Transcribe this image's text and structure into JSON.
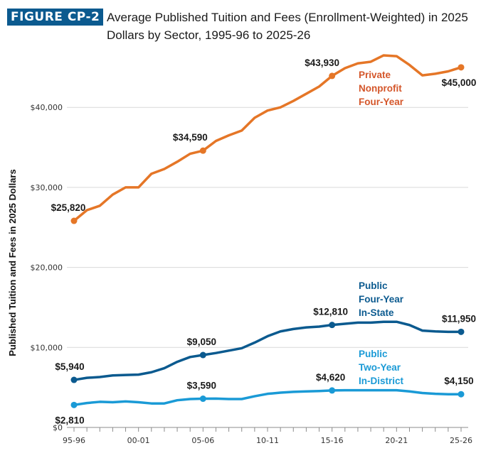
{
  "figure": {
    "badge": "FIGURE CP-2",
    "badge_color": "#0b5a8f"
  },
  "chart_data": {
    "type": "line",
    "title": "Average Published Tuition and Fees (Enrollment-Weighted) in 2025 Dollars by Sector, 1995-96 to 2025-26",
    "xlabel": "",
    "ylabel": "Published Tuition and Fees in 2025 Dollars",
    "ylim": [
      0,
      46500
    ],
    "yticks": [
      0,
      10000,
      20000,
      30000,
      40000
    ],
    "ytick_labels": [
      "$0",
      "$10,000",
      "$20,000",
      "$30,000",
      "$40,000"
    ],
    "grid": true,
    "x": [
      "95-96",
      "96-97",
      "97-98",
      "98-99",
      "99-00",
      "00-01",
      "01-02",
      "02-03",
      "03-04",
      "04-05",
      "05-06",
      "06-07",
      "07-08",
      "08-09",
      "09-10",
      "10-11",
      "11-12",
      "12-13",
      "13-14",
      "14-15",
      "15-16",
      "16-17",
      "17-18",
      "18-19",
      "19-20",
      "20-21",
      "21-22",
      "22-23",
      "23-24",
      "24-25",
      "25-26"
    ],
    "xtick_labels": [
      "95-96",
      "00-01",
      "05-06",
      "10-11",
      "15-16",
      "20-21",
      "25-26"
    ],
    "series": [
      {
        "name": "Private Nonprofit Four-Year",
        "label_lines": [
          "Private",
          "Nonprofit",
          "Four-Year"
        ],
        "color": "#e57627",
        "label_color": "#d4562a",
        "values": [
          25820,
          27150,
          27700,
          29100,
          30000,
          30000,
          31700,
          32300,
          33200,
          34200,
          34590,
          35800,
          36500,
          37100,
          38700,
          39600,
          40000,
          40800,
          41700,
          42600,
          43930,
          44900,
          45500,
          45700,
          46500,
          46400,
          45300,
          44000,
          44200,
          44500,
          45000
        ],
        "annotations": [
          {
            "index": 0,
            "text": "$25,820"
          },
          {
            "index": 10,
            "text": "$34,590"
          },
          {
            "index": 20,
            "text": "$43,930"
          },
          {
            "index": 30,
            "text": "$45,000"
          }
        ]
      },
      {
        "name": "Public Four-Year In-State",
        "label_lines": [
          "Public",
          "Four-Year",
          "In-State"
        ],
        "color": "#0b5a8f",
        "label_color": "#0b5a8f",
        "values": [
          5940,
          6200,
          6300,
          6500,
          6550,
          6600,
          6900,
          7400,
          8200,
          8800,
          9050,
          9300,
          9600,
          9900,
          10600,
          11400,
          12000,
          12300,
          12500,
          12600,
          12810,
          12950,
          13100,
          13100,
          13200,
          13200,
          12800,
          12100,
          12000,
          11950,
          11950
        ],
        "annotations": [
          {
            "index": 0,
            "text": "$5,940"
          },
          {
            "index": 10,
            "text": "$9,050"
          },
          {
            "index": 20,
            "text": "$12,810"
          },
          {
            "index": 30,
            "text": "$11,950"
          }
        ]
      },
      {
        "name": "Public Two-Year In-District",
        "label_lines": [
          "Public",
          "Two-Year",
          "In-District"
        ],
        "color": "#1a9ad6",
        "label_color": "#1a9ad6",
        "values": [
          2810,
          3050,
          3200,
          3150,
          3250,
          3150,
          3000,
          3000,
          3400,
          3550,
          3590,
          3600,
          3550,
          3550,
          3900,
          4200,
          4350,
          4450,
          4500,
          4550,
          4620,
          4650,
          4650,
          4650,
          4650,
          4650,
          4500,
          4300,
          4200,
          4150,
          4150
        ],
        "annotations": [
          {
            "index": 0,
            "text": "$2,810"
          },
          {
            "index": 10,
            "text": "$3,590"
          },
          {
            "index": 20,
            "text": "$4,620"
          },
          {
            "index": 30,
            "text": "$4,150"
          }
        ]
      }
    ]
  }
}
